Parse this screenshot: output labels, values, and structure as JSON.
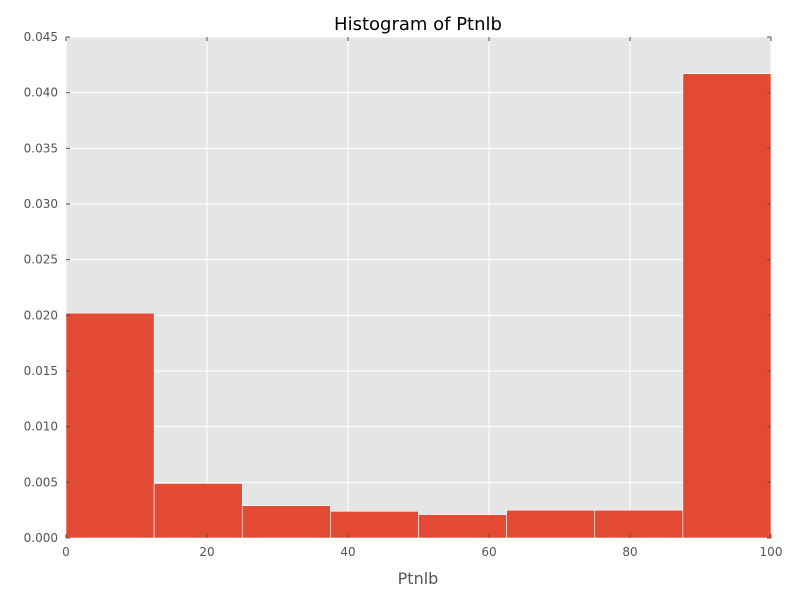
{
  "chart_data": {
    "type": "bar",
    "title": "Histogram of Ptnlb",
    "xlabel": "Ptnlb",
    "ylabel": "",
    "xlim": [
      0,
      100
    ],
    "ylim": [
      0,
      0.045
    ],
    "x_ticks": [
      "0",
      "20",
      "40",
      "60",
      "80",
      "100"
    ],
    "y_ticks": [
      "0.000",
      "0.005",
      "0.010",
      "0.015",
      "0.020",
      "0.025",
      "0.030",
      "0.035",
      "0.040",
      "0.045"
    ],
    "grid": true,
    "bins": [
      {
        "start": 0,
        "end": 12.5,
        "value": 0.0202
      },
      {
        "start": 12.5,
        "end": 25,
        "value": 0.0049
      },
      {
        "start": 25,
        "end": 37.5,
        "value": 0.0029
      },
      {
        "start": 37.5,
        "end": 50,
        "value": 0.0024
      },
      {
        "start": 50,
        "end": 62.5,
        "value": 0.0021
      },
      {
        "start": 62.5,
        "end": 75,
        "value": 0.0025
      },
      {
        "start": 75,
        "end": 87.5,
        "value": 0.0025
      },
      {
        "start": 87.5,
        "end": 100,
        "value": 0.0417
      }
    ],
    "colors": {
      "bar": "#E24A33",
      "background": "#E5E5E5",
      "grid": "#FFFFFF"
    }
  }
}
